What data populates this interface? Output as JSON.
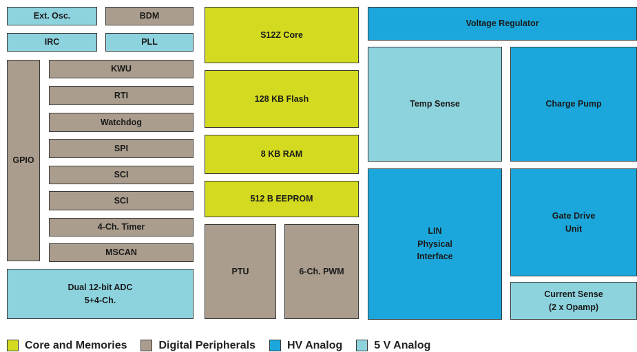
{
  "colors": {
    "core_and_memories": "#d3da20",
    "digital_peripherals": "#aa9d8d",
    "hv_analog": "#1ba7db",
    "five_v_analog": "#8dd3de"
  },
  "blocks": {
    "ext_osc": "Ext. Osc.",
    "bdm": "BDM",
    "irc": "IRC",
    "pll": "PLL",
    "gpio": "GPIO",
    "kwu": "KWU",
    "rti": "RTI",
    "watchdog": "Watchdog",
    "spi": "SPI",
    "sci1": "SCI",
    "sci2": "SCI",
    "timer": "4-Ch. Timer",
    "mscan": "MSCAN",
    "adc": "Dual 12-bit ADC\n5+4-Ch.",
    "core": "S12Z Core",
    "flash": "128 KB Flash",
    "ram": "8 KB RAM",
    "eeprom": "512 B EEPROM",
    "ptu": "PTU",
    "pwm": "6-Ch. PWM",
    "vreg": "Voltage Regulator",
    "temp_sense": "Temp Sense",
    "charge_pump": "Charge Pump",
    "lin": "LIN\nPhysical\nInterface",
    "gate_drive": "Gate Drive\nUnit",
    "current_sense": "Current Sense\n(2 x Opamp)"
  },
  "legend": {
    "core_and_memories": "Core and Memories",
    "digital_peripherals": "Digital Peripherals",
    "hv_analog": "HV Analog",
    "five_v_analog": "5 V Analog"
  }
}
